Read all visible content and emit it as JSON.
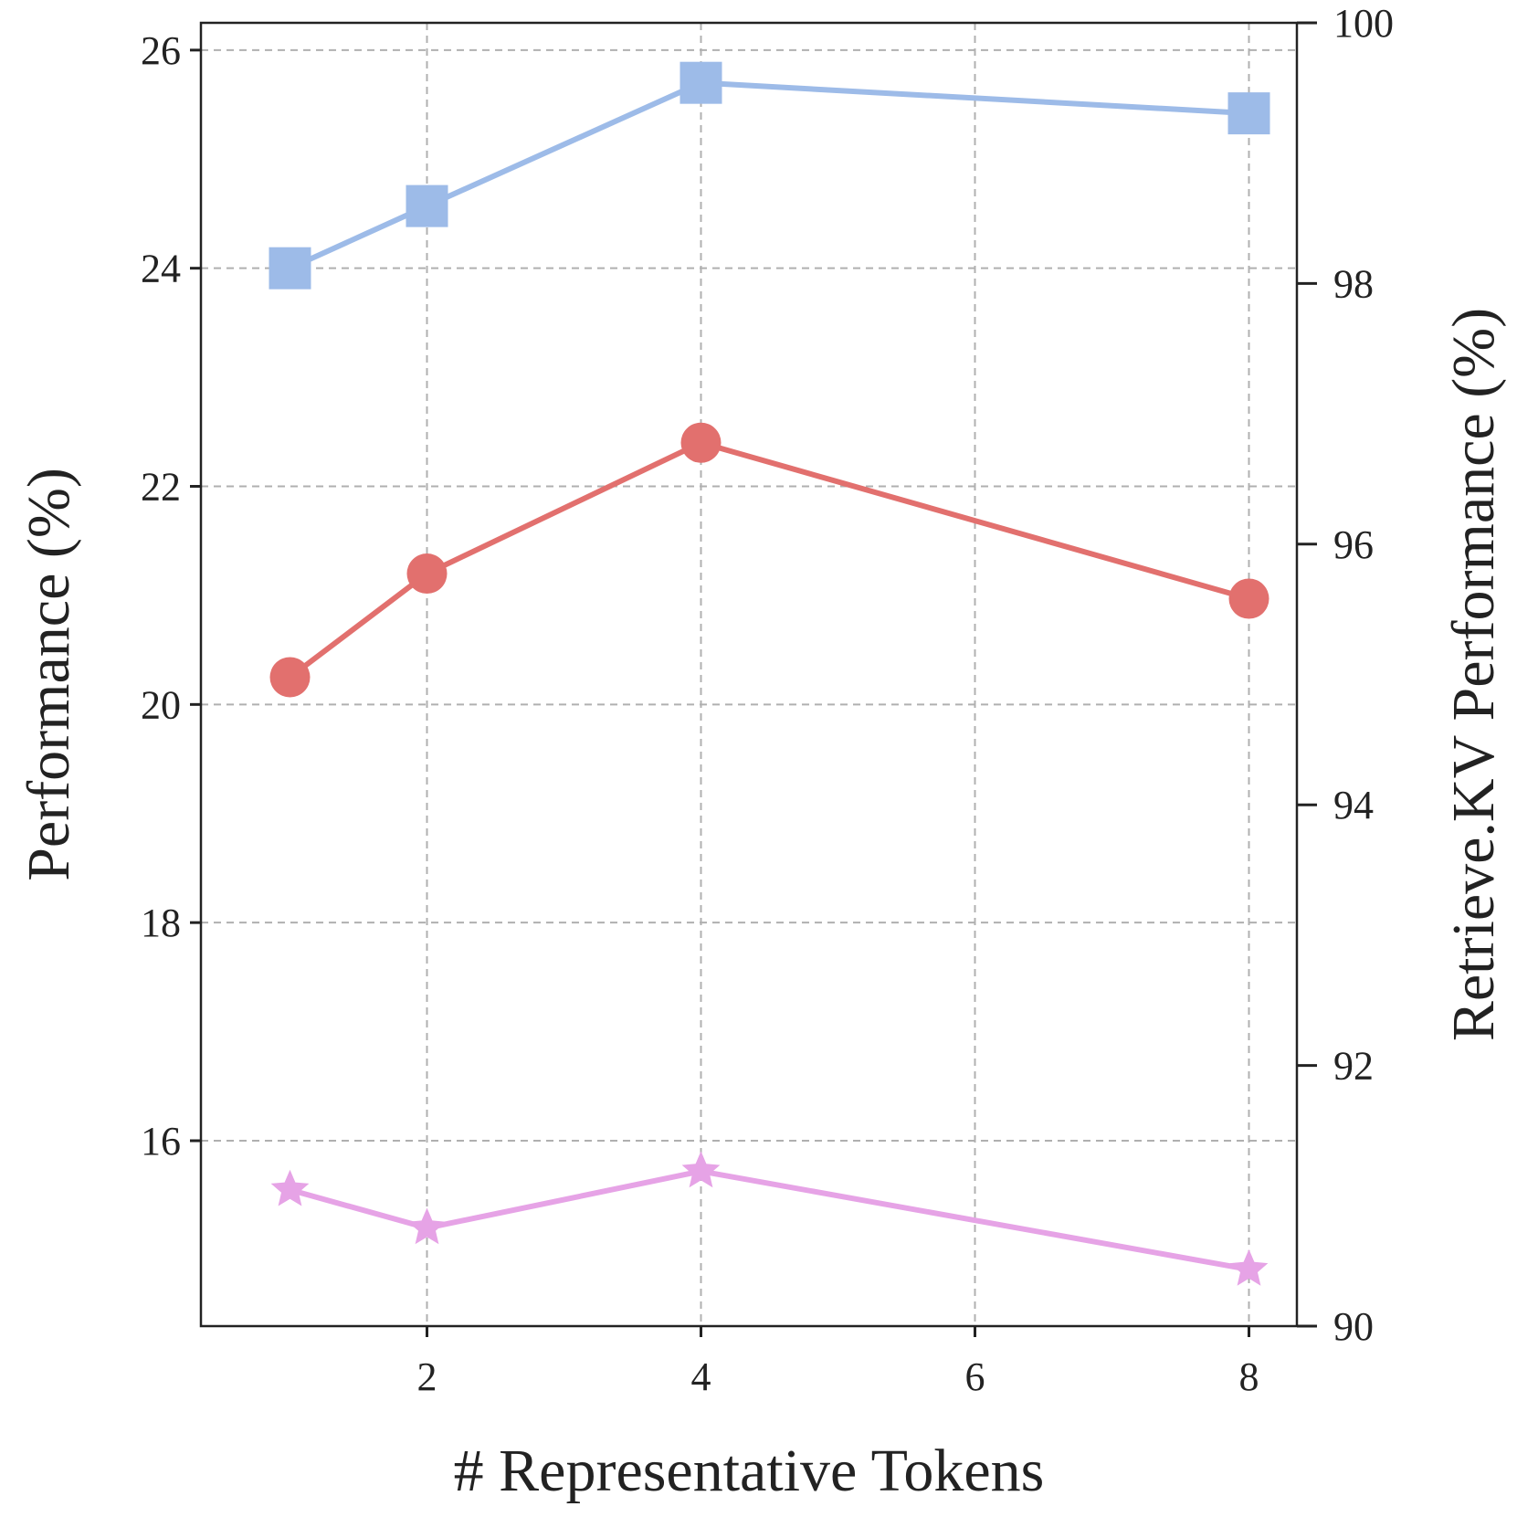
{
  "chart_data": {
    "type": "line",
    "title": "",
    "xlabel": "# Representative Tokens",
    "ylabel": "Performance (%)",
    "y2label": "Retrieve.KV Performance (%)",
    "x": [
      1,
      2,
      4,
      8
    ],
    "xlim": [
      0.35,
      8.35
    ],
    "xticks": [
      2,
      4,
      6,
      8
    ],
    "ylim": [
      14.3,
      26.25
    ],
    "yticks": [
      16,
      18,
      20,
      22,
      24,
      26
    ],
    "y2lim": [
      90,
      100
    ],
    "y2ticks": [
      90,
      92,
      94,
      96,
      98,
      100
    ],
    "grid": true,
    "legend": "none",
    "series": [
      {
        "axis": "left",
        "marker": "square",
        "color": "#9dbbe8",
        "values": [
          24.0,
          24.57,
          25.7,
          25.42
        ]
      },
      {
        "axis": "left",
        "marker": "circle",
        "color": "#e2706e",
        "values": [
          20.25,
          21.2,
          22.4,
          20.97
        ]
      },
      {
        "axis": "left",
        "marker": "star",
        "color": "#e6a3e6",
        "values": [
          15.55,
          15.2,
          15.72,
          14.82
        ]
      }
    ]
  }
}
